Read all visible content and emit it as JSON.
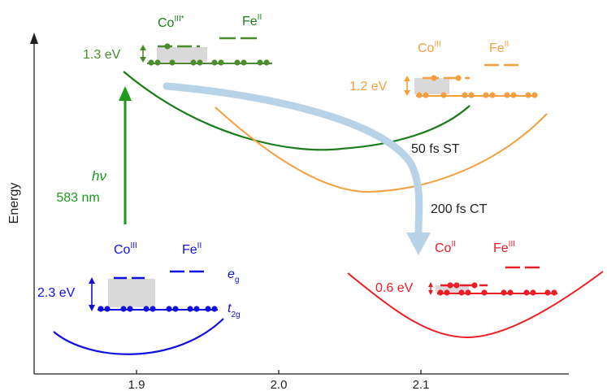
{
  "axis": {
    "ylabel": "Energy",
    "xticks": [
      "1.9",
      "2.0",
      "2.1"
    ]
  },
  "colors": {
    "axis": "#231f20",
    "green": "#1c7d1c",
    "olive": "#4c8a2e",
    "blue": "#1010e0",
    "orange": "#f5a040",
    "red": "#ee1c24",
    "arrow": "#b8d3e8",
    "shade": "#d9d9d9"
  },
  "excitation": {
    "h": "h",
    "nu": "ν",
    "wavelength": "583 nm"
  },
  "states": {
    "gs": {
      "co": "Co",
      "co_sup": "III",
      "fe": "Fe",
      "fe_sup": "II",
      "gap": "2.3 eV",
      "eg": "e",
      "eg_sub": "g",
      "t2g": "t",
      "t2g_sub": "2g"
    },
    "excited": {
      "co": "Co",
      "co_sup": "III*",
      "fe": "Fe",
      "fe_sup": "II",
      "gap": "1.3 eV"
    },
    "st": {
      "co": "Co",
      "co_sup": "III",
      "fe": "Fe",
      "fe_sup": "II",
      "gap": "1.2 eV"
    },
    "ct": {
      "co": "Co",
      "co_sup": "II",
      "fe": "Fe",
      "fe_sup": "III",
      "gap": "0.6 eV"
    }
  },
  "transitions": {
    "st": "50 fs ST",
    "ct": "200 fs CT"
  }
}
